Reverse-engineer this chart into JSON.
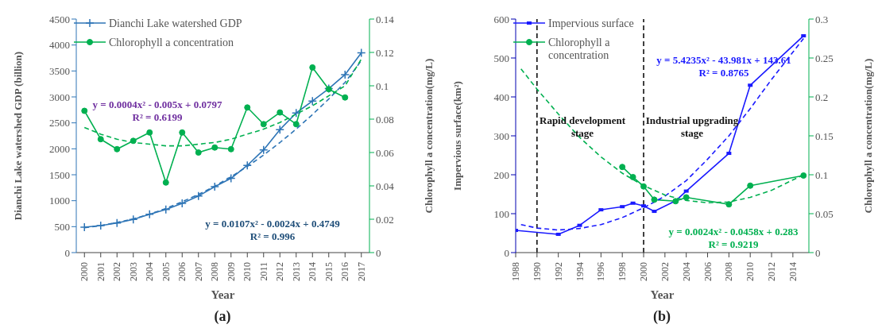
{
  "chart_data": [
    {
      "type": "line",
      "xlabel": "Year",
      "ylabel": "Dianchi Lake watershed GDP (billion)",
      "y2label": "Chlorophyll  a concentration(mg/L)",
      "x": [
        2000,
        2001,
        2002,
        2003,
        2004,
        2005,
        2006,
        2007,
        2008,
        2009,
        2010,
        2011,
        2012,
        2013,
        2014,
        2015,
        2016,
        2017
      ],
      "xlim": [
        1999.5,
        2017.5
      ],
      "xticks": [
        2000,
        2001,
        2002,
        2003,
        2004,
        2005,
        2006,
        2007,
        2008,
        2009,
        2010,
        2011,
        2012,
        2013,
        2014,
        2015,
        2016,
        2017
      ],
      "ylim": [
        0,
        4500
      ],
      "yticks": [
        0,
        500,
        1000,
        1500,
        2000,
        2500,
        3000,
        3500,
        4000,
        4500
      ],
      "y2lim": [
        0,
        0.14
      ],
      "y2ticks": [
        0,
        0.02,
        0.04,
        0.06,
        0.08,
        0.1,
        0.12,
        0.14
      ],
      "legend": "top left",
      "line_style": "solid",
      "series": [
        {
          "name": "Dianchi Lake watershed GDP",
          "color": "#2e75b6",
          "marker": "cross",
          "values": [
            490,
            520,
            570,
            640,
            740,
            830,
            950,
            1090,
            1270,
            1430,
            1680,
            1980,
            2370,
            2690,
            2920,
            3160,
            3430,
            3850
          ]
        },
        {
          "name": "Chlorophyll a concentration",
          "color": "#00b050",
          "marker": "circle",
          "axis": "y2",
          "values": [
            0.085,
            0.068,
            0.062,
            0.067,
            0.072,
            0.042,
            0.072,
            0.06,
            0.063,
            0.062,
            0.087,
            0.077,
            0.084,
            0.077,
            0.111,
            0.098,
            0.093,
            null
          ]
        },
        {
          "type": "line",
          "color": "#2e75b6",
          "marker": "none",
          "line_style": "dashed",
          "values": [
            480,
            520,
            580,
            650,
            740,
            850,
            980,
            1120,
            1280,
            1460,
            1660,
            1880,
            2120,
            2380,
            2660,
            2960,
            3280,
            3700
          ]
        },
        {
          "type": "line",
          "color": "#00b050",
          "marker": "none",
          "line_style": "dashed",
          "axis": "y2",
          "values": [
            0.075,
            0.071,
            0.068,
            0.066,
            0.065,
            0.064,
            0.064,
            0.065,
            0.066,
            0.068,
            0.071,
            0.074,
            0.078,
            0.083,
            0.088,
            0.094,
            0.1,
            0.116
          ]
        }
      ],
      "annotations": [
        "y = 0.0004x² - 0.005x + 0.0797",
        "R² = 0.6199",
        "y = 0.0107x² - 0.0024x + 0.4749",
        "R² = 0.996",
        "(a)"
      ]
    },
    {
      "type": "line",
      "xlabel": "Year",
      "ylabel": "Impervious surface(km²)",
      "y2label": "Chlorophyll a concentration(mg/L)",
      "xlim": [
        1988,
        2015.5
      ],
      "xticks": [
        1988,
        1990,
        1992,
        1994,
        1996,
        1998,
        2000,
        2002,
        2004,
        2006,
        2008,
        2010,
        2012,
        2014
      ],
      "ylim": [
        0,
        600
      ],
      "yticks": [
        0,
        100,
        200,
        300,
        400,
        500,
        600
      ],
      "y2lim": [
        0,
        0.3
      ],
      "y2ticks": [
        0,
        0.05,
        0.1,
        0.15,
        0.2,
        0.25,
        0.3
      ],
      "legend": "top left",
      "line_style": "solid",
      "series": [
        {
          "name": "Impervious surface",
          "color": "#1a1aff",
          "marker": "square",
          "x": [
            1988,
            1992,
            1994,
            1996,
            1998,
            1999,
            2000,
            2001,
            2003,
            2004,
            2008,
            2010,
            2015
          ],
          "values": [
            57,
            47,
            70,
            110,
            118,
            127,
            120,
            106,
            133,
            158,
            255,
            430,
            557
          ]
        },
        {
          "name": "Chlorophyll a concentration",
          "color": "#00b050",
          "marker": "circle",
          "axis": "y2",
          "x": [
            1998,
            1999,
            2000,
            2001,
            2003,
            2004,
            2008,
            2010,
            2015
          ],
          "values": [
            0.11,
            0.097,
            0.085,
            0.068,
            0.066,
            0.071,
            0.062,
            0.086,
            0.099
          ]
        },
        {
          "type": "line",
          "color": "#1a1aff",
          "marker": "none",
          "line_style": "dashed",
          "x": [
            1988.5,
            1990,
            1992,
            1994,
            1996,
            1998,
            2000,
            2002,
            2004,
            2006,
            2008,
            2010,
            2012,
            2015
          ],
          "values": [
            72,
            63,
            58,
            62,
            72,
            90,
            115,
            145,
            185,
            240,
            300,
            370,
            445,
            550
          ]
        },
        {
          "type": "line",
          "color": "#00b050",
          "marker": "none",
          "line_style": "dashed",
          "axis": "y2",
          "x": [
            1988.5,
            1990,
            1992,
            1994,
            1996,
            1998,
            2000,
            2002,
            2004,
            2006,
            2008,
            2010,
            2012,
            2015
          ],
          "values": [
            0.236,
            0.21,
            0.178,
            0.148,
            0.123,
            0.102,
            0.086,
            0.074,
            0.067,
            0.064,
            0.065,
            0.071,
            0.08,
            0.1
          ]
        }
      ],
      "ref_lines": [
        {
          "axis": "x",
          "value": 1990,
          "color": "#000000",
          "line_style": "dashed"
        },
        {
          "axis": "x",
          "value": 2000,
          "color": "#000000",
          "line_style": "dashed"
        }
      ],
      "annotations": [
        "Rapid development stage",
        "Industrial upgrading stage",
        "y = 5.4235x² - 43.981x + 143.61",
        "R² = 0.8765",
        "y = 0.0024x² - 0.0458x + 0.283",
        "R² = 0.9219",
        "(b)"
      ]
    }
  ]
}
